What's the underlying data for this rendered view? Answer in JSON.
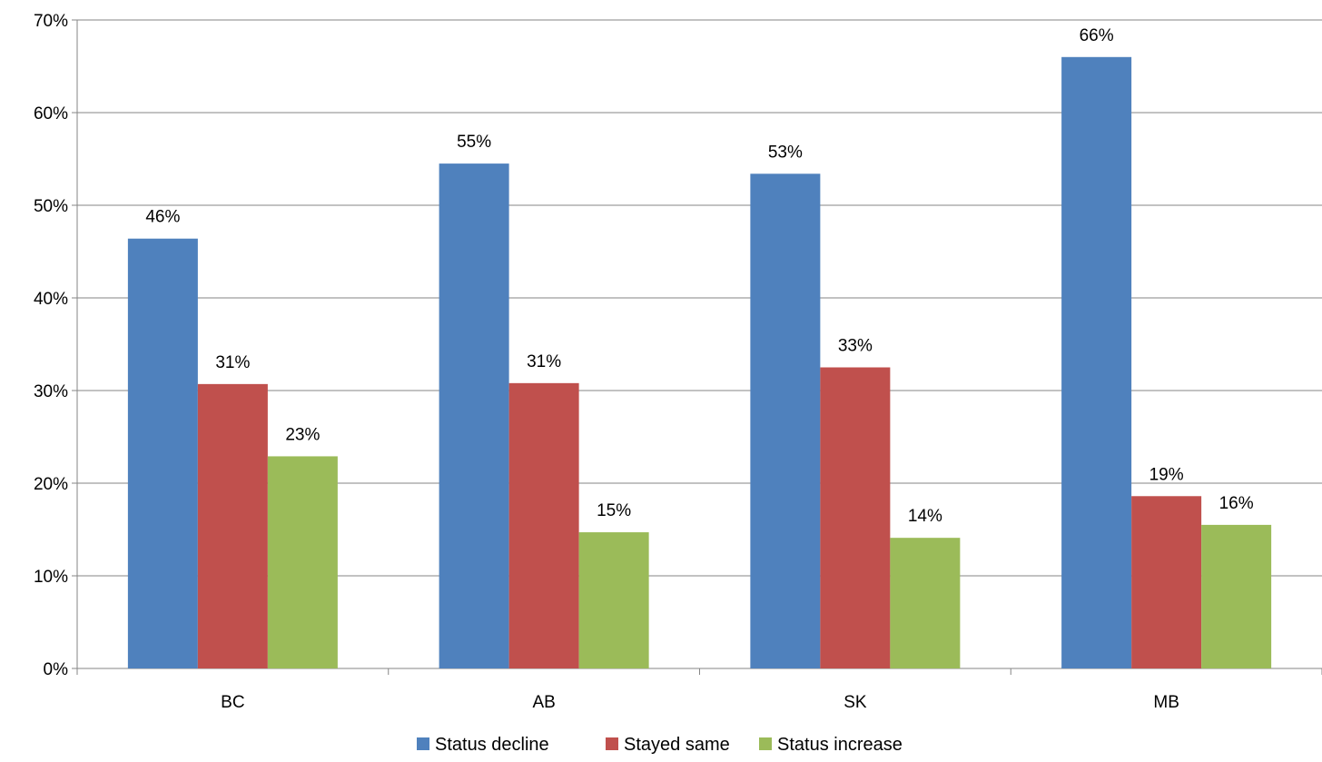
{
  "chart_data": {
    "type": "bar",
    "title": "",
    "xlabel": "",
    "ylabel": "",
    "categories": [
      "BC",
      "AB",
      "SK",
      "MB"
    ],
    "series": [
      {
        "name": "Status decline",
        "color": "#4F81BD",
        "values": [
          46.4,
          54.5,
          53.4,
          66.0
        ],
        "labels": [
          "46%",
          "55%",
          "53%",
          "66%"
        ]
      },
      {
        "name": "Stayed same",
        "color": "#C0504D",
        "values": [
          30.7,
          30.8,
          32.5,
          18.6
        ],
        "labels": [
          "31%",
          "31%",
          "33%",
          "19%"
        ]
      },
      {
        "name": "Status increase",
        "color": "#9BBB59",
        "values": [
          22.9,
          14.7,
          14.1,
          15.5
        ],
        "labels": [
          "23%",
          "15%",
          "14%",
          "16%"
        ]
      }
    ],
    "ylim": [
      0,
      70
    ],
    "yticks": [
      0,
      10,
      20,
      30,
      40,
      50,
      60,
      70
    ],
    "ytick_labels": [
      "0%",
      "10%",
      "20%",
      "30%",
      "40%",
      "50%",
      "60%",
      "70%"
    ],
    "grid": true,
    "legend_position": "bottom"
  }
}
